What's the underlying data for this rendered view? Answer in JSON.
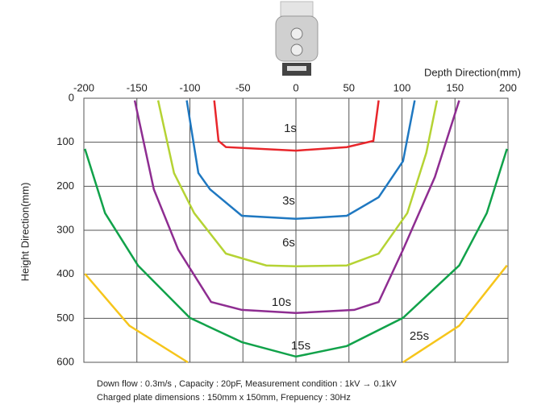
{
  "chart_data": {
    "type": "line",
    "x_label": "Depth Direction(mm)",
    "y_label": "Height Direction(mm)",
    "notes": [
      "Down flow : 0.3m/s , Capacity : 20pF, Measurement condition : 1kV → 0.1kV",
      "Charged plate dimensions : 150mm x 150mm, Frepuency : 30Hz"
    ],
    "xlim": [
      -200,
      200
    ],
    "ylim": [
      600,
      0
    ],
    "xticks": [
      -200,
      -150,
      -100,
      -50,
      0,
      50,
      100,
      150,
      200
    ],
    "yticks": [
      0,
      100,
      200,
      300,
      400,
      500,
      600
    ],
    "grid": true,
    "series": [
      {
        "name": "1s",
        "color": "#e8262b",
        "x": [
          -77,
          -73,
          -66,
          0,
          48,
          73,
          78
        ],
        "values": [
          5,
          97,
          111,
          119,
          111,
          97,
          5
        ]
      },
      {
        "name": "3s",
        "color": "#1f78c1",
        "x": [
          -103,
          -92,
          -81,
          -51,
          0,
          48,
          78,
          101,
          112
        ],
        "values": [
          5,
          170,
          207,
          267,
          274,
          267,
          225,
          143,
          5
        ]
      },
      {
        "name": "6s",
        "color": "#b5d334",
        "x": [
          -130,
          -115,
          -96,
          -66,
          -28,
          0,
          48,
          78,
          105,
          123,
          133
        ],
        "values": [
          5,
          170,
          261,
          353,
          380,
          382,
          380,
          353,
          261,
          124,
          5
        ]
      },
      {
        "name": "10s",
        "color": "#8e2d91",
        "x": [
          -152,
          -134,
          -111,
          -80,
          -51,
          0,
          55,
          78,
          101,
          131,
          154
        ],
        "values": [
          5,
          207,
          344,
          463,
          481,
          488,
          481,
          463,
          344,
          179,
          5
        ]
      },
      {
        "name": "15s",
        "color": "#11a24a",
        "x": [
          -199,
          -180,
          -149,
          -100,
          -51,
          0,
          48,
          101,
          154,
          180,
          199
        ],
        "values": [
          115,
          261,
          380,
          499,
          554,
          587,
          563,
          499,
          380,
          261,
          115
        ]
      },
      {
        "name": "25s",
        "color": "#f6c51b",
        "x": [
          -199,
          -157,
          -102,
          null,
          101,
          154,
          199
        ],
        "values": [
          399,
          517,
          600,
          null,
          600,
          517,
          380
        ]
      }
    ]
  }
}
